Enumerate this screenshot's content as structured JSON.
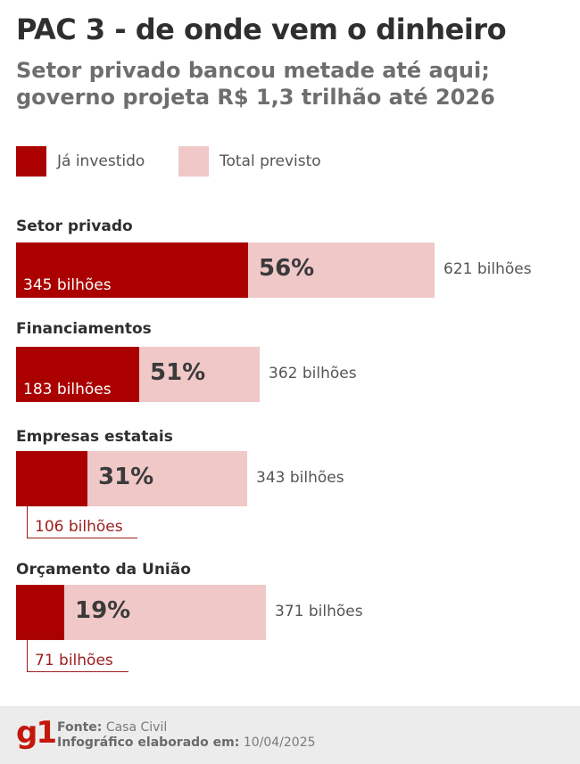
{
  "title": "PAC 3 - de onde vem o dinheiro",
  "subtitle": "Setor privado bancou metade até aqui; governo projeta R$ 1,3 trilhão até 2026",
  "colors": {
    "invested": "#aa0000",
    "total": "#f0c8c8"
  },
  "legend": {
    "invested_label": "Já investido",
    "total_label": "Total previsto"
  },
  "chart_data": {
    "type": "bar",
    "orientation": "horizontal",
    "stacked_overlay": true,
    "unit": "bilhões",
    "categories": [
      "Setor privado",
      "Financiamentos",
      "Empresas estatais",
      "Orçamento da União"
    ],
    "series": [
      {
        "name": "Já investido",
        "values": [
          345,
          183,
          106,
          71
        ]
      },
      {
        "name": "Total previsto",
        "values": [
          621,
          362,
          343,
          371
        ]
      }
    ],
    "percent_labels": [
      "56%",
      "51%",
      "31%",
      "19%"
    ],
    "invested_labels": [
      "345 bilhões",
      "183 bilhões",
      "106 bilhões",
      "71 bilhões"
    ],
    "total_labels": [
      "621 bilhões",
      "362 bilhões",
      "343 bilhões",
      "371 bilhões"
    ]
  },
  "footer": {
    "logo": "g1",
    "source_label": "Fonte:",
    "source_value": "Casa Civil",
    "date_label": "Infográfico elaborado em:",
    "date_value": "10/04/2025"
  }
}
